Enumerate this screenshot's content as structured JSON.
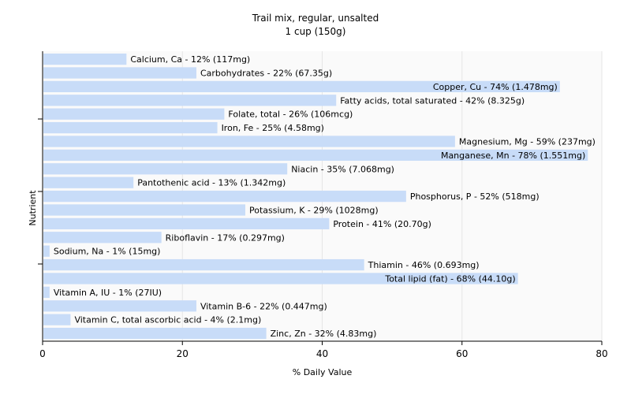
{
  "chart_data": {
    "type": "bar",
    "orientation": "horizontal",
    "title": "Trail mix, regular, unsalted",
    "subtitle": "1 cup (150g)",
    "xlabel": "% Daily Value",
    "ylabel": "Nutrient",
    "xlim": [
      0,
      80
    ],
    "xticks": [
      0,
      20,
      40,
      60,
      80
    ],
    "grid": true,
    "colors": {
      "bar": "#c8dcf8",
      "grid": "#e6e6e6",
      "plot_bg": "#fafafa",
      "axis": "#000000"
    },
    "categories": [
      "Calcium, Ca",
      "Carbohydrates",
      "Copper, Cu",
      "Fatty acids, total saturated",
      "Folate, total",
      "Iron, Fe",
      "Magnesium, Mg",
      "Manganese, Mn",
      "Niacin",
      "Pantothenic acid",
      "Phosphorus, P",
      "Potassium, K",
      "Protein",
      "Riboflavin",
      "Sodium, Na",
      "Thiamin",
      "Total lipid (fat)",
      "Vitamin A, IU",
      "Vitamin B-6",
      "Vitamin C, total ascorbic acid",
      "Zinc, Zn"
    ],
    "values": [
      12,
      22,
      74,
      42,
      26,
      25,
      59,
      78,
      35,
      13,
      52,
      29,
      41,
      17,
      1,
      46,
      68,
      1,
      22,
      4,
      32
    ],
    "labels": [
      "Calcium, Ca - 12% (117mg)",
      "Carbohydrates - 22% (67.35g)",
      "Copper, Cu - 74% (1.478mg)",
      "Fatty acids, total saturated - 42% (8.325g)",
      "Folate, total - 26% (106mcg)",
      "Iron, Fe - 25% (4.58mg)",
      "Magnesium, Mg - 59% (237mg)",
      "Manganese, Mn - 78% (1.551mg)",
      "Niacin - 35% (7.068mg)",
      "Pantothenic acid - 13% (1.342mg)",
      "Phosphorus, P - 52% (518mg)",
      "Potassium, K - 29% (1028mg)",
      "Protein - 41% (20.70g)",
      "Riboflavin - 17% (0.297mg)",
      "Sodium, Na - 1% (15mg)",
      "Thiamin - 46% (0.693mg)",
      "Total lipid (fat) - 68% (44.10g)",
      "Vitamin A, IU - 1% (27IU)",
      "Vitamin B-6 - 22% (0.447mg)",
      "Vitamin C, total ascorbic acid - 4% (2.1mg)",
      "Zinc, Zn - 32% (4.83mg)"
    ]
  }
}
